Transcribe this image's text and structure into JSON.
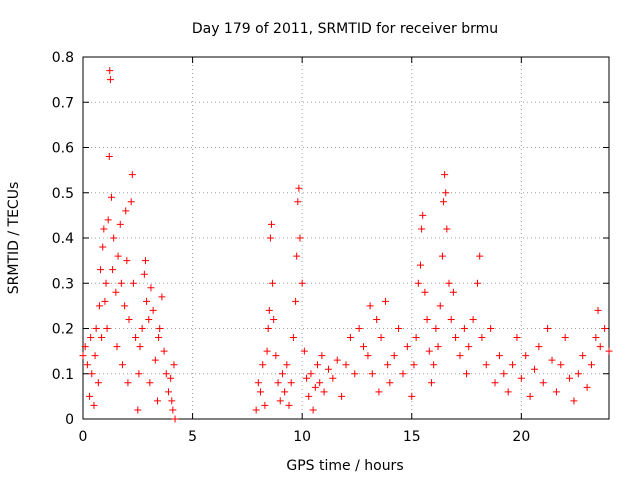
{
  "chart_data": {
    "type": "scatter",
    "title": "Day 179 of 2011, SRMTID for receiver brmu",
    "xlabel": "GPS time / hours",
    "ylabel": "SRMTID / TECUs",
    "xlim": [
      0,
      24
    ],
    "ylim": [
      0,
      0.8
    ],
    "xticks": [
      0,
      5,
      10,
      15,
      20
    ],
    "yticks": [
      0,
      0.1,
      0.2,
      0.3,
      0.4,
      0.5,
      0.6,
      0.7,
      0.8
    ],
    "xtick_labels": [
      "0",
      "5",
      "10",
      "15",
      "20"
    ],
    "ytick_labels": [
      "0",
      "0.1",
      "0.2",
      "0.3",
      "0.4",
      "0.5",
      "0.6",
      "0.7",
      "0.8"
    ],
    "grid": true,
    "marker": "+",
    "color": "#ff0000",
    "series": [
      {
        "name": "SRMTID",
        "points": [
          [
            0.0,
            0.14
          ],
          [
            0.1,
            0.16
          ],
          [
            0.2,
            0.12
          ],
          [
            0.3,
            0.05
          ],
          [
            0.35,
            0.18
          ],
          [
            0.4,
            0.1
          ],
          [
            0.5,
            0.03
          ],
          [
            0.55,
            0.14
          ],
          [
            0.6,
            0.2
          ],
          [
            0.7,
            0.08
          ],
          [
            0.75,
            0.25
          ],
          [
            0.8,
            0.33
          ],
          [
            0.85,
            0.18
          ],
          [
            0.9,
            0.38
          ],
          [
            0.95,
            0.42
          ],
          [
            1.0,
            0.26
          ],
          [
            1.05,
            0.3
          ],
          [
            1.1,
            0.2
          ],
          [
            1.15,
            0.44
          ],
          [
            1.2,
            0.58
          ],
          [
            1.22,
            0.77
          ],
          [
            1.25,
            0.75
          ],
          [
            1.3,
            0.49
          ],
          [
            1.35,
            0.33
          ],
          [
            1.4,
            0.4
          ],
          [
            1.5,
            0.28
          ],
          [
            1.55,
            0.16
          ],
          [
            1.6,
            0.36
          ],
          [
            1.7,
            0.43
          ],
          [
            1.75,
            0.3
          ],
          [
            1.8,
            0.12
          ],
          [
            1.9,
            0.25
          ],
          [
            1.95,
            0.46
          ],
          [
            2.0,
            0.35
          ],
          [
            2.05,
            0.08
          ],
          [
            2.1,
            0.22
          ],
          [
            2.2,
            0.48
          ],
          [
            2.25,
            0.54
          ],
          [
            2.3,
            0.3
          ],
          [
            2.4,
            0.18
          ],
          [
            2.5,
            0.02
          ],
          [
            2.55,
            0.1
          ],
          [
            2.6,
            0.16
          ],
          [
            2.7,
            0.2
          ],
          [
            2.8,
            0.32
          ],
          [
            2.85,
            0.35
          ],
          [
            2.9,
            0.26
          ],
          [
            3.0,
            0.22
          ],
          [
            3.05,
            0.08
          ],
          [
            3.1,
            0.29
          ],
          [
            3.2,
            0.24
          ],
          [
            3.3,
            0.13
          ],
          [
            3.4,
            0.04
          ],
          [
            3.45,
            0.18
          ],
          [
            3.5,
            0.2
          ],
          [
            3.6,
            0.27
          ],
          [
            3.7,
            0.15
          ],
          [
            3.8,
            0.1
          ],
          [
            3.9,
            0.06
          ],
          [
            4.0,
            0.09
          ],
          [
            4.05,
            0.04
          ],
          [
            4.1,
            0.02
          ],
          [
            4.15,
            0.12
          ],
          [
            4.2,
            0.0
          ],
          [
            7.9,
            0.02
          ],
          [
            8.0,
            0.08
          ],
          [
            8.1,
            0.06
          ],
          [
            8.2,
            0.12
          ],
          [
            8.3,
            0.03
          ],
          [
            8.4,
            0.15
          ],
          [
            8.45,
            0.2
          ],
          [
            8.5,
            0.24
          ],
          [
            8.55,
            0.4
          ],
          [
            8.6,
            0.43
          ],
          [
            8.65,
            0.3
          ],
          [
            8.7,
            0.22
          ],
          [
            8.8,
            0.14
          ],
          [
            8.9,
            0.08
          ],
          [
            9.0,
            0.04
          ],
          [
            9.1,
            0.1
          ],
          [
            9.2,
            0.06
          ],
          [
            9.3,
            0.12
          ],
          [
            9.4,
            0.03
          ],
          [
            9.5,
            0.08
          ],
          [
            9.6,
            0.18
          ],
          [
            9.7,
            0.26
          ],
          [
            9.75,
            0.36
          ],
          [
            9.8,
            0.48
          ],
          [
            9.85,
            0.51
          ],
          [
            9.9,
            0.4
          ],
          [
            10.0,
            0.3
          ],
          [
            10.1,
            0.15
          ],
          [
            10.2,
            0.09
          ],
          [
            10.3,
            0.05
          ],
          [
            10.4,
            0.1
          ],
          [
            10.5,
            0.02
          ],
          [
            10.6,
            0.07
          ],
          [
            10.7,
            0.12
          ],
          [
            10.8,
            0.08
          ],
          [
            10.9,
            0.14
          ],
          [
            11.0,
            0.06
          ],
          [
            11.2,
            0.11
          ],
          [
            11.4,
            0.09
          ],
          [
            11.6,
            0.13
          ],
          [
            11.8,
            0.05
          ],
          [
            12.0,
            0.12
          ],
          [
            12.2,
            0.18
          ],
          [
            12.4,
            0.1
          ],
          [
            12.6,
            0.2
          ],
          [
            12.8,
            0.16
          ],
          [
            13.0,
            0.14
          ],
          [
            13.1,
            0.25
          ],
          [
            13.2,
            0.1
          ],
          [
            13.4,
            0.22
          ],
          [
            13.5,
            0.06
          ],
          [
            13.6,
            0.18
          ],
          [
            13.8,
            0.26
          ],
          [
            13.9,
            0.12
          ],
          [
            14.0,
            0.08
          ],
          [
            14.2,
            0.14
          ],
          [
            14.4,
            0.2
          ],
          [
            14.6,
            0.1
          ],
          [
            14.8,
            0.16
          ],
          [
            15.0,
            0.05
          ],
          [
            15.1,
            0.12
          ],
          [
            15.2,
            0.18
          ],
          [
            15.3,
            0.3
          ],
          [
            15.4,
            0.34
          ],
          [
            15.45,
            0.42
          ],
          [
            15.5,
            0.45
          ],
          [
            15.6,
            0.28
          ],
          [
            15.7,
            0.22
          ],
          [
            15.8,
            0.15
          ],
          [
            15.9,
            0.08
          ],
          [
            16.0,
            0.12
          ],
          [
            16.1,
            0.2
          ],
          [
            16.2,
            0.16
          ],
          [
            16.3,
            0.25
          ],
          [
            16.4,
            0.36
          ],
          [
            16.45,
            0.48
          ],
          [
            16.5,
            0.54
          ],
          [
            16.55,
            0.5
          ],
          [
            16.6,
            0.42
          ],
          [
            16.7,
            0.3
          ],
          [
            16.8,
            0.22
          ],
          [
            16.9,
            0.28
          ],
          [
            17.0,
            0.18
          ],
          [
            17.2,
            0.14
          ],
          [
            17.4,
            0.2
          ],
          [
            17.5,
            0.1
          ],
          [
            17.6,
            0.16
          ],
          [
            17.8,
            0.22
          ],
          [
            18.0,
            0.3
          ],
          [
            18.1,
            0.36
          ],
          [
            18.2,
            0.18
          ],
          [
            18.4,
            0.12
          ],
          [
            18.6,
            0.2
          ],
          [
            18.8,
            0.08
          ],
          [
            19.0,
            0.14
          ],
          [
            19.2,
            0.1
          ],
          [
            19.4,
            0.06
          ],
          [
            19.6,
            0.12
          ],
          [
            19.8,
            0.18
          ],
          [
            20.0,
            0.09
          ],
          [
            20.2,
            0.14
          ],
          [
            20.4,
            0.05
          ],
          [
            20.6,
            0.11
          ],
          [
            20.8,
            0.16
          ],
          [
            21.0,
            0.08
          ],
          [
            21.2,
            0.2
          ],
          [
            21.4,
            0.13
          ],
          [
            21.6,
            0.06
          ],
          [
            21.8,
            0.12
          ],
          [
            22.0,
            0.18
          ],
          [
            22.2,
            0.09
          ],
          [
            22.4,
            0.04
          ],
          [
            22.6,
            0.1
          ],
          [
            22.8,
            0.14
          ],
          [
            23.0,
            0.07
          ],
          [
            23.2,
            0.12
          ],
          [
            23.4,
            0.18
          ],
          [
            23.5,
            0.24
          ],
          [
            23.6,
            0.16
          ],
          [
            23.8,
            0.2
          ],
          [
            24.0,
            0.15
          ]
        ]
      }
    ]
  }
}
